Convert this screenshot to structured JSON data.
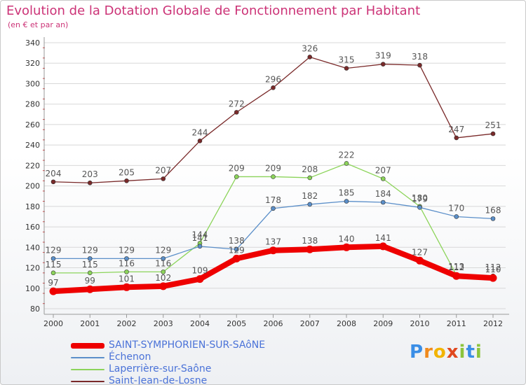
{
  "chart_data": {
    "type": "line",
    "title": "Evolution de la Dotation Globale de Fonctionnement par Habitant",
    "subtitle": "(en € et par an)",
    "xlabel": "",
    "ylabel": "",
    "ylim": [
      80,
      340
    ],
    "yticks": [
      80,
      100,
      120,
      140,
      160,
      180,
      200,
      220,
      240,
      260,
      280,
      300,
      320,
      340
    ],
    "categories": [
      "2000",
      "2001",
      "2002",
      "2003",
      "2004",
      "2005",
      "2006",
      "2007",
      "2008",
      "2009",
      "2010",
      "2011",
      "2012"
    ],
    "series": [
      {
        "name": "SAINT-SYMPHORIEN-SUR-SAôNE",
        "color": "#ee0000",
        "values": [
          97,
          99,
          101,
          102,
          109,
          129,
          137,
          138,
          140,
          141,
          127,
          112,
          110
        ]
      },
      {
        "name": "Échenon",
        "color": "#5b8fc9",
        "values": [
          129,
          129,
          129,
          129,
          141,
          138,
          178,
          182,
          185,
          184,
          179,
          170,
          168
        ]
      },
      {
        "name": "Laperrière-sur-Saône",
        "color": "#8cd45a",
        "values": [
          115,
          115,
          116,
          116,
          144,
          209,
          209,
          208,
          222,
          207,
          180,
          113,
          112
        ]
      },
      {
        "name": "Saint-Jean-de-Losne",
        "color": "#7a2a2a",
        "values": [
          204,
          203,
          205,
          207,
          244,
          272,
          296,
          326,
          315,
          319,
          318,
          247,
          251
        ]
      }
    ]
  },
  "logo": {
    "text": "Proxiti"
  }
}
